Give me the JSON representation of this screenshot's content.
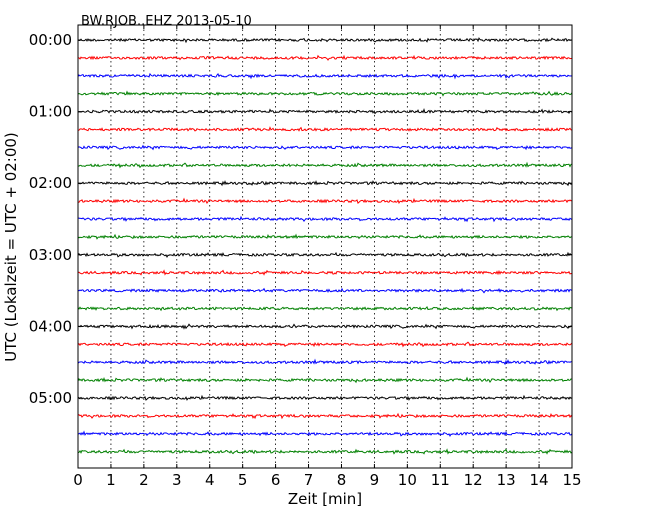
{
  "chart_data": {
    "type": "line",
    "title": "BW.RJOB..EHZ 2013-05-10",
    "xlabel": "Zeit  [min]",
    "ylabel": "UTC (Lokalzeit = UTC + 02:00)",
    "xlim": [
      0,
      15
    ],
    "x_ticks": [
      0,
      1,
      2,
      3,
      4,
      5,
      6,
      7,
      8,
      9,
      10,
      11,
      12,
      13,
      14,
      15
    ],
    "y_tick_labels": [
      "00:00",
      "01:00",
      "02:00",
      "03:00",
      "04:00",
      "05:00"
    ],
    "traces_per_hour": 4,
    "trace_start_times": [
      "00:00",
      "00:15",
      "00:30",
      "00:45",
      "01:00",
      "01:15",
      "01:30",
      "01:45",
      "02:00",
      "02:15",
      "02:30",
      "02:45",
      "03:00",
      "03:15",
      "03:30",
      "03:45",
      "04:00",
      "04:15",
      "04:30",
      "04:45",
      "05:00",
      "05:15",
      "05:30",
      "05:45"
    ],
    "trace_colors": [
      "#000000",
      "#ff0000",
      "#0000ff",
      "#008000"
    ],
    "grid": "vertical dotted",
    "legend": "none"
  }
}
